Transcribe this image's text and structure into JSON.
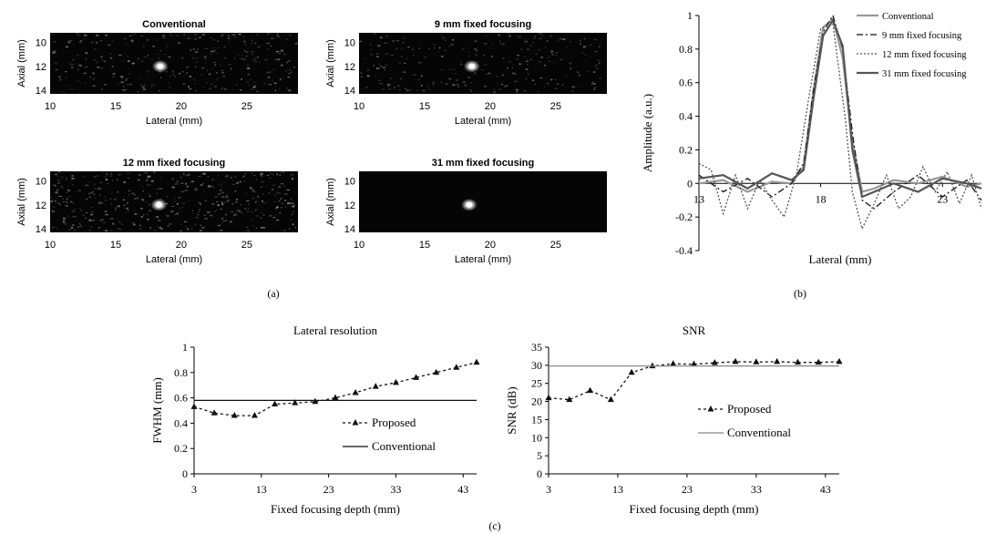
{
  "panel_labels": {
    "a": "(a)",
    "b": "(b)",
    "c": "(c)"
  },
  "images": [
    {
      "title": "Conventional",
      "xlabel": "Lateral (mm)",
      "ylabel": "Axial (mm)",
      "xticks": [
        "10",
        "15",
        "20",
        "25"
      ],
      "yticks": [
        "10",
        "12",
        "14"
      ],
      "spot": {
        "x": 18.4,
        "y": 12.0
      }
    },
    {
      "title": "9 mm fixed focusing",
      "xlabel": "Lateral (mm)",
      "ylabel": "Axial (mm)",
      "xticks": [
        "10",
        "15",
        "20",
        "25"
      ],
      "yticks": [
        "10",
        "12",
        "14"
      ],
      "spot": {
        "x": 18.6,
        "y": 12.0
      }
    },
    {
      "title": "12 mm fixed focusing",
      "xlabel": "Lateral (mm)",
      "ylabel": "Axial (mm)",
      "xticks": [
        "10",
        "15",
        "20",
        "25"
      ],
      "yticks": [
        "10",
        "12",
        "14"
      ],
      "spot": {
        "x": 18.3,
        "y": 12.0
      }
    },
    {
      "title": "31 mm fixed focusing",
      "xlabel": "Lateral (mm)",
      "ylabel": "Axial (mm)",
      "xticks": [
        "10",
        "15",
        "20",
        "25"
      ],
      "yticks": [
        "10",
        "12",
        "14"
      ],
      "spot": {
        "x": 18.4,
        "y": 12.0
      }
    }
  ],
  "chart_data": [
    {
      "type": "line",
      "id": "b",
      "xlabel": "Lateral (mm)",
      "ylabel": "Amplitude (a.u.)",
      "xticks": [
        "13",
        "18",
        "23"
      ],
      "yticks": [
        "-0.4",
        "-0.2",
        "0",
        "0.2",
        "0.4",
        "0.6",
        "0.8",
        "1"
      ],
      "xlim": [
        13,
        24.6
      ],
      "ylim": [
        -0.4,
        1
      ],
      "legend_position": "top-right",
      "series": [
        {
          "name": "Conventional",
          "color": "#999999",
          "dash": "",
          "x": [
            13,
            14,
            15,
            16,
            16.8,
            17.3,
            17.7,
            18.1,
            18.5,
            18.9,
            19.3,
            19.7,
            20.2,
            21,
            22,
            23,
            24,
            24.6
          ],
          "y": [
            0.0,
            0.02,
            -0.05,
            0.01,
            0.0,
            0.1,
            0.55,
            0.93,
            0.98,
            0.75,
            0.25,
            -0.05,
            -0.03,
            0.02,
            0.0,
            0.04,
            -0.02,
            0.0
          ]
        },
        {
          "name": "9 mm fixed focusing",
          "color": "#111111",
          "dash": "7 3 2 3",
          "x": [
            13,
            14,
            15,
            16,
            16.8,
            17.3,
            17.7,
            18.1,
            18.5,
            18.9,
            19.3,
            19.7,
            20.2,
            21,
            22,
            23,
            24,
            24.6
          ],
          "y": [
            0.05,
            -0.05,
            0.03,
            -0.08,
            0.0,
            0.12,
            0.55,
            0.9,
            1.0,
            0.8,
            0.3,
            -0.1,
            -0.15,
            -0.05,
            0.05,
            -0.08,
            0.02,
            -0.1
          ]
        },
        {
          "name": "12 mm fixed focusing",
          "color": "#555555",
          "dash": "2 2",
          "x": [
            13,
            13.5,
            14,
            14.5,
            15,
            15.5,
            16,
            16.5,
            17,
            17.5,
            18,
            18.5,
            19,
            19.3,
            19.7,
            20.2,
            20.7,
            21.2,
            21.7,
            22.2,
            22.7,
            23.2,
            23.7,
            24.2,
            24.6
          ],
          "y": [
            0.12,
            0.08,
            -0.18,
            0.05,
            -0.15,
            0.02,
            -0.1,
            -0.2,
            0.05,
            0.5,
            0.92,
            0.95,
            0.4,
            -0.05,
            -0.27,
            -0.12,
            0.05,
            -0.15,
            -0.08,
            0.1,
            -0.05,
            0.07,
            -0.12,
            0.05,
            -0.15
          ]
        },
        {
          "name": "31 mm fixed focusing",
          "color": "#555555",
          "dash": "",
          "x": [
            13,
            14,
            15,
            16,
            16.8,
            17.3,
            17.7,
            18.1,
            18.5,
            18.9,
            19.3,
            19.7,
            20.2,
            21,
            22,
            23,
            24,
            24.6
          ],
          "y": [
            0.03,
            0.05,
            -0.03,
            0.06,
            0.02,
            0.08,
            0.5,
            0.88,
            0.97,
            0.82,
            0.2,
            -0.08,
            -0.05,
            0.0,
            -0.05,
            0.03,
            0.0,
            -0.03
          ]
        }
      ]
    },
    {
      "type": "line",
      "id": "c-left",
      "title": "Lateral resolution",
      "xlabel": "Fixed focusing depth (mm)",
      "ylabel": "FWHM (mm)",
      "xticks": [
        "3",
        "13",
        "23",
        "33",
        "43"
      ],
      "yticks": [
        "0",
        "0.2",
        "0.4",
        "0.6",
        "0.8",
        "1"
      ],
      "xlim": [
        3,
        45
      ],
      "ylim": [
        0,
        1
      ],
      "legend_position": "bottom-right",
      "series": [
        {
          "name": "Proposed",
          "color": "#111111",
          "dash": "3 3",
          "marker": "triangle",
          "x": [
            3,
            6,
            9,
            12,
            15,
            18,
            21,
            24,
            27,
            30,
            33,
            36,
            39,
            42,
            45
          ],
          "y": [
            0.53,
            0.48,
            0.46,
            0.46,
            0.55,
            0.56,
            0.57,
            0.6,
            0.64,
            0.69,
            0.72,
            0.76,
            0.8,
            0.84,
            0.88
          ]
        },
        {
          "name": "Conventional",
          "color": "#111111",
          "dash": "",
          "constant": 0.58
        }
      ]
    },
    {
      "type": "line",
      "id": "c-right",
      "title": "SNR",
      "xlabel": "Fixed focusing depth (mm)",
      "ylabel": "SNR (dB)",
      "xticks": [
        "3",
        "13",
        "23",
        "33",
        "43"
      ],
      "yticks": [
        "0",
        "5",
        "10",
        "15",
        "20",
        "25",
        "30",
        "35"
      ],
      "xlim": [
        3,
        45
      ],
      "ylim": [
        0,
        35
      ],
      "legend_position": "center-right",
      "series": [
        {
          "name": "Proposed",
          "color": "#111111",
          "dash": "3 3",
          "marker": "triangle",
          "x": [
            3,
            6,
            9,
            12,
            15,
            18,
            21,
            24,
            27,
            30,
            33,
            36,
            39,
            42,
            45
          ],
          "y": [
            21,
            20.5,
            23,
            20.5,
            28,
            29.8,
            30.4,
            30.3,
            30.7,
            31,
            30.9,
            31,
            30.8,
            30.8,
            31
          ]
        },
        {
          "name": "Conventional",
          "color": "#888888",
          "dash": "",
          "constant": 29.8
        }
      ]
    }
  ]
}
